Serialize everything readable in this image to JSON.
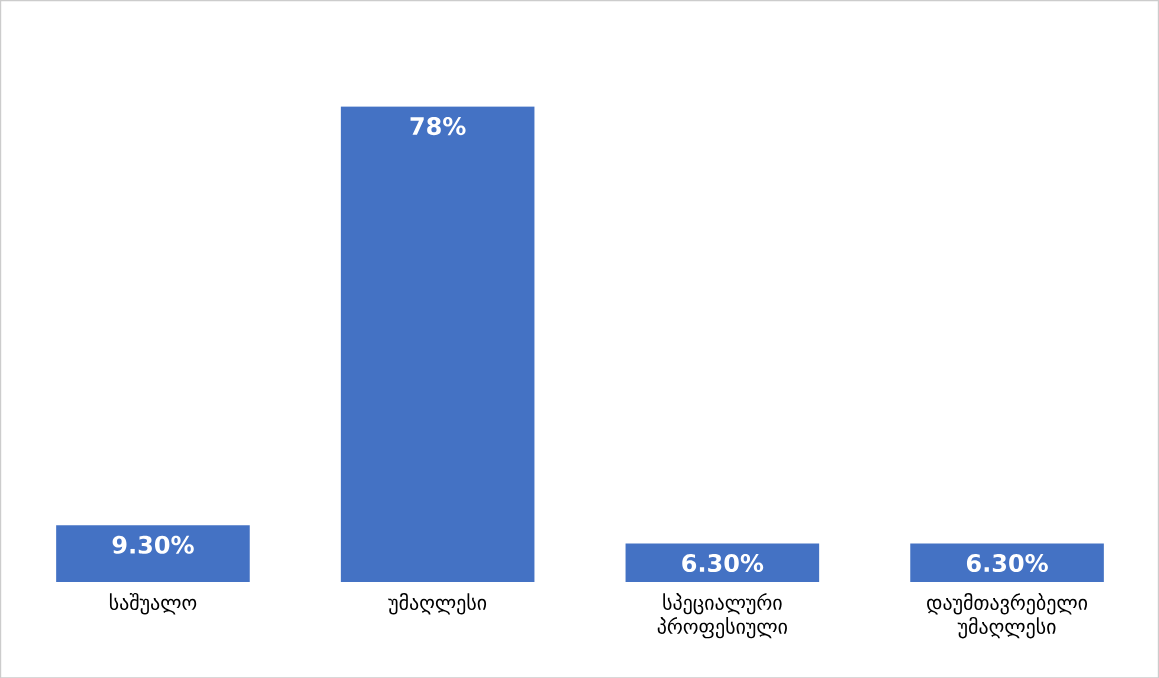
{
  "chart_data": {
    "type": "bar",
    "categories": [
      "საშუალო",
      "უმაღლესი",
      "სპეციალური პროფესიული",
      "დაუმთავრებელი უმაღლესი"
    ],
    "values": [
      9.3,
      78,
      6.3,
      6.3
    ],
    "value_labels": [
      "9.30%",
      "78%",
      "6.30%",
      "6.30%"
    ],
    "color": "#4472c4"
  }
}
